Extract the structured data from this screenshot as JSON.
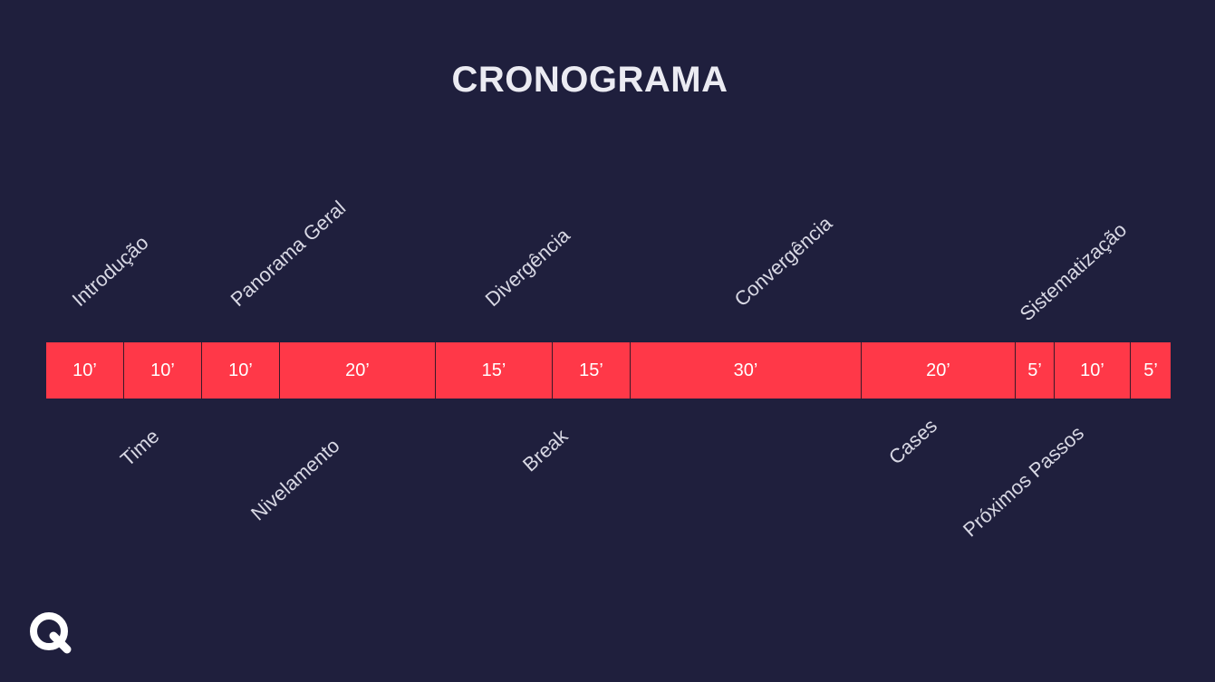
{
  "title": "CRONOGRAMA",
  "colors": {
    "background": "#1f1f3d",
    "bar": "#ff3848",
    "text": "#ebebf2"
  },
  "segments": [
    {
      "duration": "10’",
      "minutes": 10
    },
    {
      "duration": "10’",
      "minutes": 10
    },
    {
      "duration": "10’",
      "minutes": 10
    },
    {
      "duration": "20’",
      "minutes": 20
    },
    {
      "duration": "15’",
      "minutes": 15
    },
    {
      "duration": "15’",
      "minutes": 15
    },
    {
      "duration": "30’",
      "minutes": 30
    },
    {
      "duration": "20’",
      "minutes": 20
    },
    {
      "duration": "5’",
      "minutes": 5
    },
    {
      "duration": "10’",
      "minutes": 10
    },
    {
      "duration": "5’",
      "minutes": 5
    }
  ],
  "labels_top": [
    "Introdução",
    "Panorama Geral",
    "Divergência",
    "Convergência",
    "Sistematização"
  ],
  "labels_bottom": [
    "Time",
    "Nivelamento",
    "Break",
    "Cases",
    "Próximos Passos"
  ],
  "logo_icon": "q-logo-icon"
}
